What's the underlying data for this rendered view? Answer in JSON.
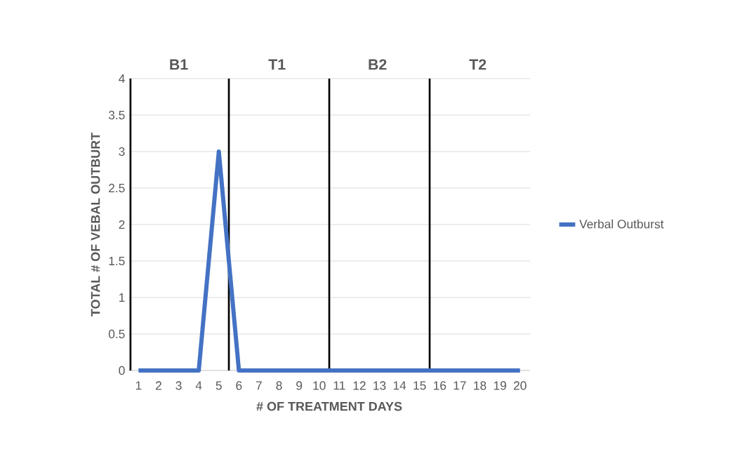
{
  "chart_data": {
    "type": "line",
    "xlabel": "# OF TREATMENT DAYS",
    "ylabel": "TOTAL # OF VEBAL OUTBURT",
    "x": [
      1,
      2,
      3,
      4,
      5,
      6,
      7,
      8,
      9,
      10,
      11,
      12,
      13,
      14,
      15,
      16,
      17,
      18,
      19,
      20
    ],
    "series": [
      {
        "name": "Verbal Outburst",
        "color": "#4472c4",
        "values": [
          0,
          0,
          0,
          0,
          3,
          0,
          0,
          0,
          0,
          0,
          0,
          0,
          0,
          0,
          0,
          0,
          0,
          0,
          0,
          0
        ]
      }
    ],
    "xlim": [
      0.5,
      20.5
    ],
    "xticks": [
      1,
      2,
      3,
      4,
      5,
      6,
      7,
      8,
      9,
      10,
      11,
      12,
      13,
      14,
      15,
      16,
      17,
      18,
      19,
      20
    ],
    "ylim": [
      0,
      4
    ],
    "yticks": [
      0,
      0.5,
      1,
      1.5,
      2,
      2.5,
      3,
      3.5,
      4
    ],
    "grid": "y",
    "legend": "right",
    "marker": "none",
    "line_style": "solid",
    "ref_lines": [
      {
        "axis": "x",
        "value": 0.6,
        "label": "B1",
        "color": "#000000"
      },
      {
        "axis": "x",
        "value": 5.5,
        "label": "T1",
        "color": "#000000"
      },
      {
        "axis": "x",
        "value": 10.5,
        "label": "B2",
        "color": "#000000"
      },
      {
        "axis": "x",
        "value": 15.5,
        "label": "T2",
        "color": "#000000"
      }
    ]
  }
}
